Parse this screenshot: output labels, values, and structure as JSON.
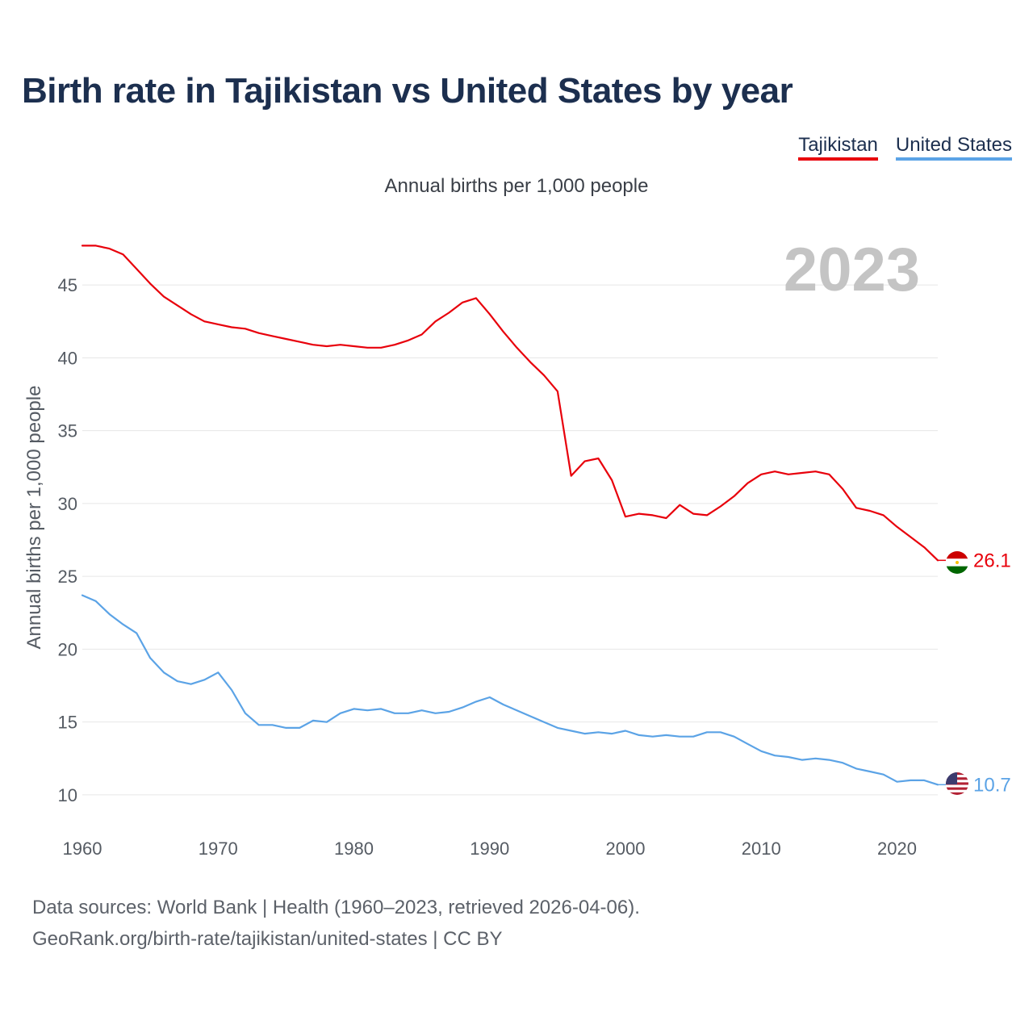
{
  "header": {
    "title": "Birth rate in Tajikistan vs United States by year",
    "subtitle": "Annual births per 1,000 people"
  },
  "legend": {
    "items": [
      {
        "label": "Tajikistan",
        "color": "#e8000b"
      },
      {
        "label": "United States",
        "color": "#5ba3e6"
      }
    ]
  },
  "footer": {
    "line1": "Data sources: World Bank | Health (1960–2023, retrieved 2026-04-06).",
    "line2": "GeoRank.org/birth-rate/tajikistan/united-states | CC BY"
  },
  "chart_data": {
    "type": "line",
    "title": "Birth rate in Tajikistan vs United States by year",
    "ylabel": "Annual births per 1,000 people",
    "xlabel": "",
    "current_year_label": "2023",
    "xlim": [
      1960,
      2023
    ],
    "ylim": [
      8.5,
      48.5
    ],
    "yticks": [
      10,
      15,
      20,
      25,
      30,
      35,
      40,
      45
    ],
    "xticks": [
      1960,
      1970,
      1980,
      1990,
      2000,
      2010,
      2020
    ],
    "grid": true,
    "x": [
      1960,
      1961,
      1962,
      1963,
      1964,
      1965,
      1966,
      1967,
      1968,
      1969,
      1970,
      1971,
      1972,
      1973,
      1974,
      1975,
      1976,
      1977,
      1978,
      1979,
      1980,
      1981,
      1982,
      1983,
      1984,
      1985,
      1986,
      1987,
      1988,
      1989,
      1990,
      1991,
      1992,
      1993,
      1994,
      1995,
      1996,
      1997,
      1998,
      1999,
      2000,
      2001,
      2002,
      2003,
      2004,
      2005,
      2006,
      2007,
      2008,
      2009,
      2010,
      2011,
      2012,
      2013,
      2014,
      2015,
      2016,
      2017,
      2018,
      2019,
      2020,
      2021,
      2022,
      2023
    ],
    "series": [
      {
        "name": "Tajikistan",
        "color": "#e8000b",
        "end_label": "26.1",
        "values": [
          47.7,
          47.7,
          47.5,
          47.1,
          46.1,
          45.1,
          44.2,
          43.6,
          43.0,
          42.5,
          42.3,
          42.1,
          42.0,
          41.7,
          41.5,
          41.3,
          41.1,
          40.9,
          40.8,
          40.9,
          40.8,
          40.7,
          40.7,
          40.9,
          41.2,
          41.6,
          42.5,
          43.1,
          43.8,
          44.1,
          43.0,
          41.8,
          40.7,
          39.7,
          38.8,
          37.7,
          31.9,
          32.9,
          33.1,
          31.6,
          29.1,
          29.3,
          29.2,
          29.0,
          29.9,
          29.3,
          29.2,
          29.8,
          30.5,
          31.4,
          32.0,
          32.2,
          32.0,
          32.1,
          32.2,
          32.0,
          31.0,
          29.7,
          29.5,
          29.2,
          28.4,
          27.7,
          27.0,
          26.1
        ]
      },
      {
        "name": "United States",
        "color": "#5ba3e6",
        "end_label": "10.7",
        "values": [
          23.7,
          23.3,
          22.4,
          21.7,
          21.1,
          19.4,
          18.4,
          17.8,
          17.6,
          17.9,
          18.4,
          17.2,
          15.6,
          14.8,
          14.8,
          14.6,
          14.6,
          15.1,
          15.0,
          15.6,
          15.9,
          15.8,
          15.9,
          15.6,
          15.6,
          15.8,
          15.6,
          15.7,
          16.0,
          16.4,
          16.7,
          16.2,
          15.8,
          15.4,
          15.0,
          14.6,
          14.4,
          14.2,
          14.3,
          14.2,
          14.4,
          14.1,
          14.0,
          14.1,
          14.0,
          14.0,
          14.3,
          14.3,
          14.0,
          13.5,
          13.0,
          12.7,
          12.6,
          12.4,
          12.5,
          12.4,
          12.2,
          11.8,
          11.6,
          11.4,
          10.9,
          11.0,
          11.0,
          10.7
        ]
      }
    ]
  }
}
